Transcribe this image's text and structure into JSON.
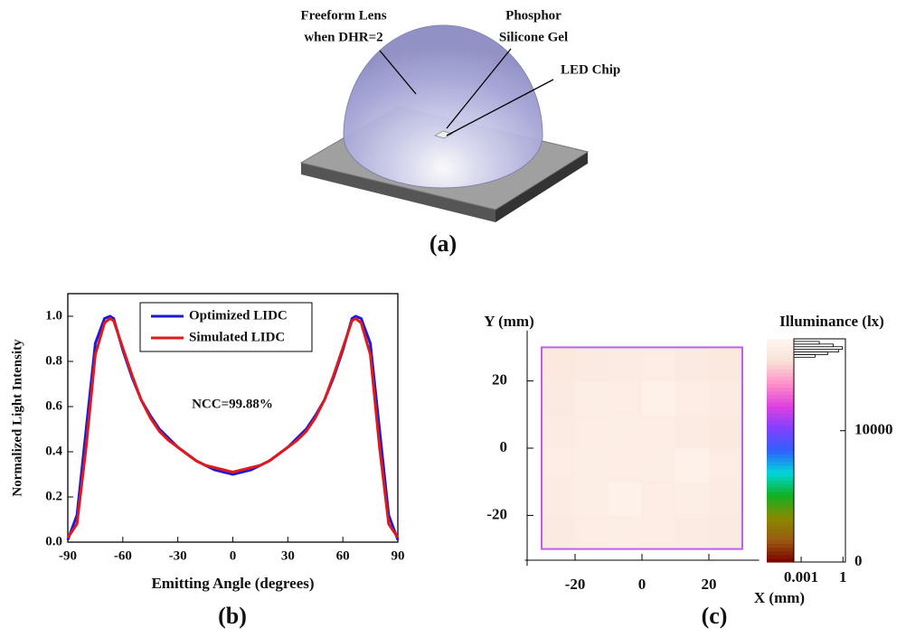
{
  "figure_a": {
    "labels": [
      {
        "lines": [
          "Freeform Lens",
          "when DHR=2"
        ]
      },
      {
        "lines": [
          "Phosphor",
          "Silicone Gel"
        ]
      },
      {
        "lines": [
          "LED Chip"
        ]
      }
    ],
    "caption": "(a)"
  },
  "chart_data": [
    {
      "type": "line",
      "caption": "(b)",
      "x_label": "Emitting Angle (degrees)",
      "y_label": "Normalized Light Intensity",
      "annotation": "NCC=99.88%",
      "x": [
        -90,
        -85,
        -80,
        -75,
        -70,
        -67,
        -65,
        -60,
        -55,
        -50,
        -45,
        -40,
        -35,
        -30,
        -25,
        -20,
        -15,
        -10,
        -5,
        0,
        5,
        10,
        15,
        20,
        25,
        30,
        35,
        40,
        45,
        50,
        55,
        60,
        65,
        67,
        70,
        75,
        80,
        85,
        90
      ],
      "series": [
        {
          "name": "Optimized LIDC",
          "color": "#1a1adc",
          "values": [
            0.01,
            0.12,
            0.5,
            0.88,
            0.99,
            1.0,
            0.99,
            0.85,
            0.73,
            0.63,
            0.56,
            0.5,
            0.46,
            0.42,
            0.39,
            0.36,
            0.34,
            0.32,
            0.31,
            0.3,
            0.31,
            0.32,
            0.34,
            0.36,
            0.39,
            0.42,
            0.46,
            0.5,
            0.56,
            0.63,
            0.73,
            0.85,
            0.99,
            1.0,
            0.99,
            0.88,
            0.5,
            0.12,
            0.01
          ]
        },
        {
          "name": "Simulated LIDC",
          "color": "#e01a1a",
          "values": [
            0.02,
            0.08,
            0.42,
            0.83,
            0.97,
            0.99,
            0.98,
            0.86,
            0.74,
            0.63,
            0.55,
            0.49,
            0.45,
            0.42,
            0.39,
            0.36,
            0.34,
            0.33,
            0.32,
            0.31,
            0.32,
            0.33,
            0.34,
            0.36,
            0.39,
            0.42,
            0.45,
            0.49,
            0.55,
            0.63,
            0.74,
            0.86,
            0.98,
            0.99,
            0.97,
            0.83,
            0.42,
            0.08,
            0.02
          ]
        }
      ],
      "xlim": [
        -90,
        90
      ],
      "ylim": [
        0,
        1.1
      ],
      "xticks": [
        -90,
        -60,
        -30,
        0,
        30,
        60,
        90
      ],
      "yticks": [
        {
          "value": 0,
          "label": "0.0"
        },
        {
          "value": 0.2,
          "label": "0.2"
        },
        {
          "value": 0.4,
          "label": "0.4"
        },
        {
          "value": 0.6,
          "label": "0.6"
        },
        {
          "value": 0.8,
          "label": "0.8"
        },
        {
          "value": 1.0,
          "label": "1.0"
        }
      ],
      "legend": "top"
    },
    {
      "type": "heatmap",
      "caption": "(c)",
      "x_label": "X (mm)",
      "y_label": "Y (mm)",
      "xlim": [
        -35,
        35
      ],
      "ylim": [
        -35,
        35
      ],
      "xticks": [
        -20,
        0,
        20
      ],
      "yticks": [
        -20,
        0,
        20
      ],
      "x_edges": [
        -30,
        -20,
        -10,
        0,
        10,
        20,
        30
      ],
      "y_edges": [
        -30,
        -20,
        -10,
        0,
        10,
        20,
        30
      ],
      "values": [
        [
          16000,
          16200,
          16300,
          16200,
          16100,
          16000
        ],
        [
          16100,
          16300,
          16600,
          16200,
          16300,
          16100
        ],
        [
          16200,
          16300,
          16200,
          16300,
          16600,
          16200
        ],
        [
          16100,
          16200,
          16300,
          16200,
          16100,
          15900
        ],
        [
          16000,
          16300,
          16200,
          16600,
          16200,
          16100
        ],
        [
          15900,
          16000,
          16100,
          16200,
          16000,
          15900
        ]
      ],
      "frame_color": "#c060e8",
      "colorbar": {
        "label": "Illuminance (lx)",
        "lim": [
          0,
          17000
        ],
        "ticks": [
          0,
          10000
        ],
        "colors": [
          "#7a0000",
          "#9a5a10",
          "#8a8a00",
          "#10b020",
          "#00d8d8",
          "#3060ff",
          "#8040ff",
          "#e040e0",
          "#ff90c8",
          "#f9e1d6",
          "#fef6f0"
        ]
      },
      "histogram": {
        "bins": [
          15600,
          15800,
          16000,
          16200,
          16400,
          16600,
          16800
        ],
        "counts": [
          0.01,
          0.08,
          0.5,
          0.9,
          0.2,
          0.02
        ],
        "xlim": [
          0.0003,
          1.5
        ],
        "xticks": [
          0.001,
          1
        ],
        "log": true
      }
    }
  ]
}
